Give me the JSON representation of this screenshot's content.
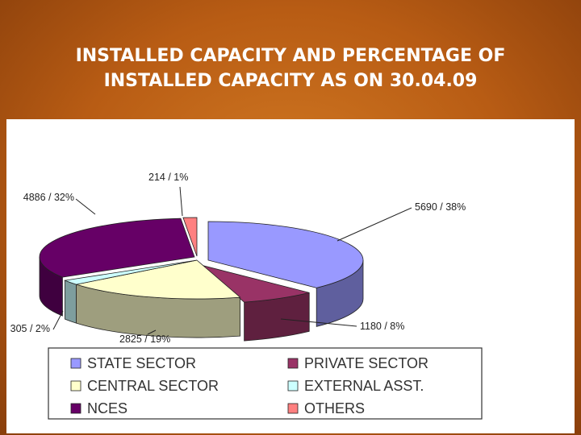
{
  "title": {
    "line1": "INSTALLED CAPACITY AND PERCENTAGE OF",
    "line2": "INSTALLED CAPACITY AS ON 30.04.09"
  },
  "chart_data": {
    "type": "pie",
    "three_d": true,
    "categories": [
      "STATE SECTOR",
      "PRIVATE SECTOR",
      "CENTRAL SECTOR",
      "EXTERNAL ASST.",
      "NCES",
      "OTHERS"
    ],
    "values": [
      5690,
      1180,
      2825,
      305,
      4886,
      214
    ],
    "percent": [
      38,
      8,
      19,
      2,
      32,
      1
    ],
    "data_labels": [
      "5690 /  38%",
      "1180 / 8%",
      "2825 / 19%",
      "305 / 2%",
      "4886 / 32%",
      "214 /  1%"
    ],
    "colors": [
      "#9999ff",
      "#993366",
      "#ffffcc",
      "#ccffff",
      "#660066",
      "#ff8080"
    ],
    "legend_position": "bottom"
  }
}
